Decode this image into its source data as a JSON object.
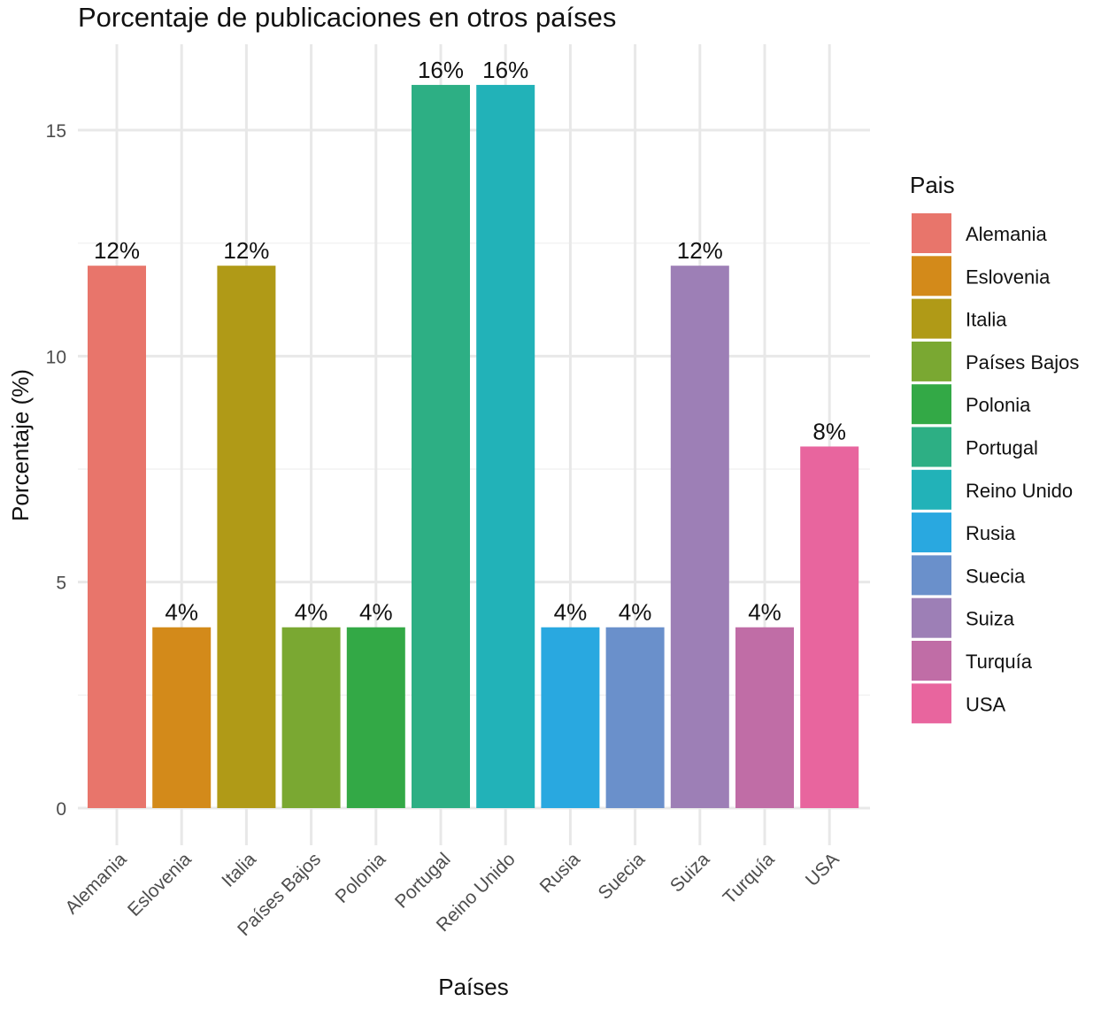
{
  "chart_data": {
    "type": "bar",
    "title": "Porcentaje de publicaciones en otros países",
    "xlabel": "Países",
    "ylabel": "Porcentaje (%)",
    "ylim": [
      0,
      16.4
    ],
    "yticks": [
      0,
      5,
      10,
      15
    ],
    "grid": true,
    "legend": {
      "title": "Pais",
      "placement": "right"
    },
    "categories": [
      "Alemania",
      "Eslovenia",
      "Italia",
      "Países Bajos",
      "Polonia",
      "Portugal",
      "Reino Unido",
      "Rusia",
      "Suecia",
      "Suiza",
      "Turquía",
      "USA"
    ],
    "values": [
      12,
      4,
      12,
      4,
      4,
      16,
      16,
      4,
      4,
      12,
      4,
      8
    ],
    "labels": [
      "12%",
      "4%",
      "12%",
      "4%",
      "4%",
      "16%",
      "16%",
      "4%",
      "4%",
      "12%",
      "4%",
      "8%"
    ],
    "colors": [
      "#E8756B",
      "#D38A1A",
      "#B09A17",
      "#7AA832",
      "#33A946",
      "#2DAF84",
      "#22B2B8",
      "#29A8E0",
      "#6A90CB",
      "#9D7FB6",
      "#C06DA6",
      "#E8659E"
    ]
  }
}
